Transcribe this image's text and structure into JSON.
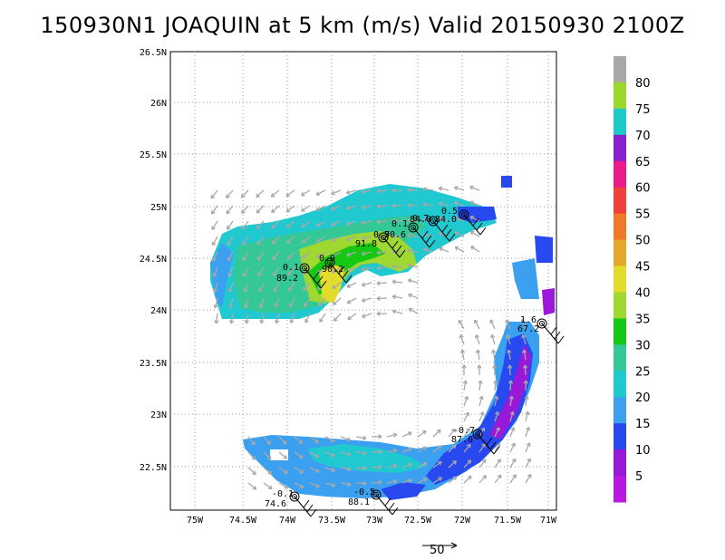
{
  "title": "150930N1  JOAQUIN  at  5  km  (m/s)  Valid  20150930  2100Z",
  "lon_ticks": [
    "75W",
    "74.5W",
    "74W",
    "73.5W",
    "73W",
    "72.5W",
    "72W",
    "71.5W",
    "71W"
  ],
  "lat_ticks": [
    "26.5N",
    "26N",
    "25.5N",
    "25N",
    "24.5N",
    "24N",
    "23.5N",
    "23N",
    "22.5N"
  ],
  "colorbar": {
    "labels": [
      "80",
      "75",
      "70",
      "65",
      "60",
      "55",
      "50",
      "45",
      "40",
      "35",
      "30",
      "25",
      "20",
      "15",
      "10",
      "5"
    ],
    "colors": [
      "#a8a8a8",
      "#9ad82a",
      "#1cc8c8",
      "#8a1fd0",
      "#ee1a8c",
      "#f0403a",
      "#f07828",
      "#e4a82a",
      "#e4dc2c",
      "#a0d832",
      "#14c814",
      "#34c896",
      "#20c8d0",
      "#3ca0f0",
      "#2848f0",
      "#9a18d8",
      "#b818e0"
    ],
    "scale_vector_label": "50"
  },
  "observations": [
    {
      "top": "0.1",
      "bottom": "89.2"
    },
    {
      "top": "0.0",
      "bottom": "90.2"
    },
    {
      "top": "0.7",
      "bottom": "91.8"
    },
    {
      "top": "0.1",
      "bottom": "90.6"
    },
    {
      "top": "0.1",
      "bottom": "90.6"
    },
    {
      "top": "0.7",
      "bottom": "84.0"
    },
    {
      "top": "0.5",
      "bottom": "84.0"
    },
    {
      "top": "1.6",
      "bottom": "67.2"
    },
    {
      "top": "-0.7",
      "bottom": "87.6"
    },
    {
      "top": "-0.1",
      "bottom": "74.6"
    },
    {
      "top": "-0.5",
      "bottom": "88.1"
    }
  ]
}
